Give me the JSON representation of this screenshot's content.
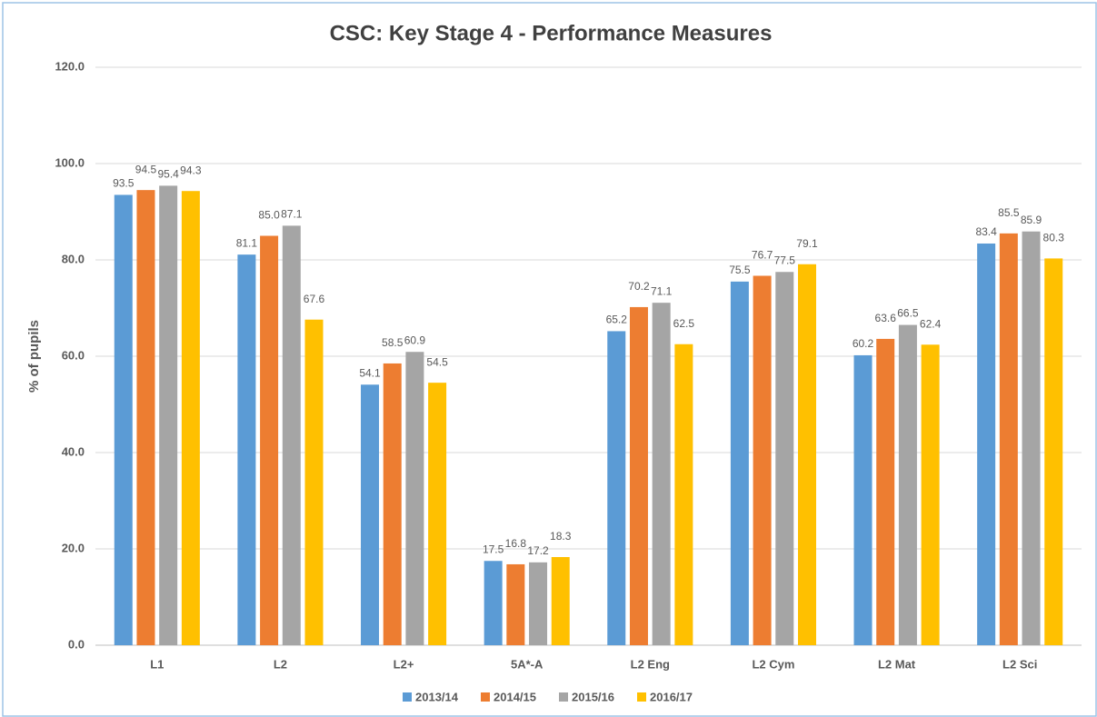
{
  "chart_data": {
    "type": "bar",
    "title": "CSC: Key Stage 4 - Performance Measures",
    "y_label": "% of pupils",
    "categories": [
      "L1",
      "L2",
      "L2+",
      "5A*-A",
      "L2 Eng",
      "L2 Cym",
      "L2 Mat",
      "L2 Sci"
    ],
    "series": [
      {
        "name": "2013/14",
        "color": "#5b9bd5",
        "values": [
          93.5,
          81.1,
          54.1,
          17.5,
          65.2,
          75.5,
          60.2,
          83.4
        ],
        "value_labels": [
          "93.5",
          "81.1",
          "54.1",
          "17.5",
          "65.2",
          "75.5",
          "60.2",
          "83.4"
        ]
      },
      {
        "name": "2014/15",
        "color": "#ed7d31",
        "values": [
          94.5,
          85.0,
          58.5,
          16.8,
          70.2,
          76.7,
          63.6,
          85.5
        ],
        "value_labels": [
          "94.5",
          "85.0",
          "58.5",
          "16.8",
          "70.2",
          "76.7",
          "63.6",
          "85.5"
        ]
      },
      {
        "name": "2015/16",
        "color": "#a5a5a5",
        "values": [
          95.4,
          87.1,
          60.9,
          17.2,
          71.1,
          77.5,
          66.5,
          85.9
        ],
        "value_labels": [
          "95.4",
          "87.1",
          "60.9",
          "17.2",
          "71.1",
          "77.5",
          "66.5",
          "85.9"
        ]
      },
      {
        "name": "2016/17",
        "color": "#ffc000",
        "values": [
          94.3,
          67.6,
          54.5,
          18.3,
          62.5,
          79.1,
          62.4,
          80.3
        ],
        "value_labels": [
          "94.3",
          "67.6",
          "54.5",
          "18.3",
          "62.5",
          "79.1",
          "62.4",
          "80.3"
        ]
      }
    ],
    "ylim": [
      0,
      120
    ],
    "yticks": [
      {
        "value": 0,
        "label": "0.0"
      },
      {
        "value": 20,
        "label": "20.0"
      },
      {
        "value": 40,
        "label": "40.0"
      },
      {
        "value": 60,
        "label": "60.0"
      },
      {
        "value": 80,
        "label": "80.0"
      },
      {
        "value": 100,
        "label": "100.0"
      },
      {
        "value": 120,
        "label": "120.0"
      }
    ],
    "grid": true,
    "legend": "bottom"
  }
}
